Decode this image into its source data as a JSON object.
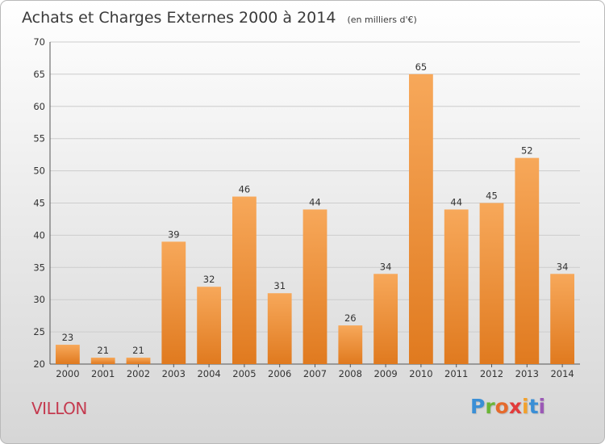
{
  "header": {
    "title": "Achats et Charges Externes 2000 à 2014",
    "subtitle": "(en milliers d'€)"
  },
  "footer": {
    "city": "VILLON",
    "logo_letters": [
      "P",
      "r",
      "o",
      "x",
      "i",
      "t",
      "i"
    ]
  },
  "colors": {
    "bar_top": "#f7a85a",
    "bar_bottom": "#e07a1f",
    "grid": "#cccccc",
    "axis_text": "#333333",
    "title_text": "#3a3a3a"
  },
  "chart_data": {
    "type": "bar",
    "title": "Achats et Charges Externes 2000 à 2014",
    "subtitle": "(en milliers d'€)",
    "xlabel": "",
    "ylabel": "",
    "categories": [
      "2000",
      "2001",
      "2002",
      "2003",
      "2004",
      "2005",
      "2006",
      "2007",
      "2008",
      "2009",
      "2010",
      "2011",
      "2012",
      "2013",
      "2014"
    ],
    "values": [
      23,
      21,
      21,
      39,
      32,
      46,
      31,
      44,
      26,
      34,
      65,
      44,
      45,
      52,
      34
    ],
    "ylim": [
      20,
      70
    ],
    "yticks": [
      20,
      25,
      30,
      35,
      40,
      45,
      50,
      55,
      60,
      65,
      70
    ],
    "grid": true,
    "data_labels": true
  }
}
